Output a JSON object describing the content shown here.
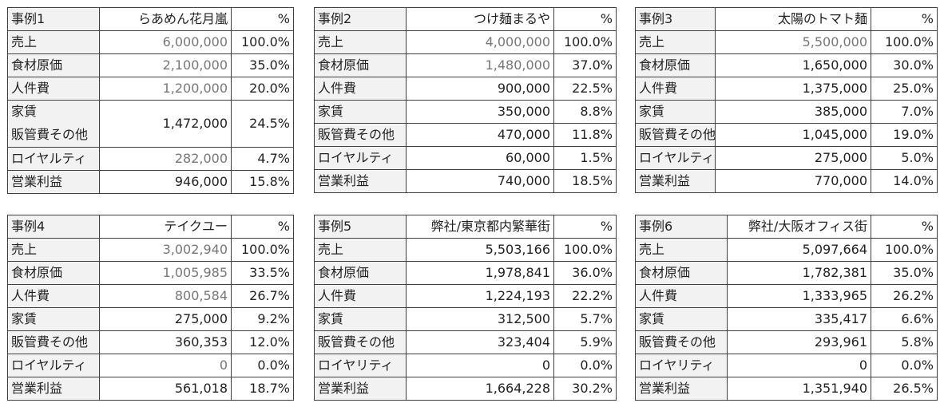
{
  "case1": {
    "id": "事例1",
    "name": "らあめん花月嵐",
    "pct_header": "%",
    "rows": [
      {
        "label": "売上",
        "value": "6,000,000",
        "pct": "100.0%"
      },
      {
        "label": "食材原価",
        "value": "2,100,000",
        "pct": "35.0%"
      },
      {
        "label": "人件費",
        "value": "1,200,000",
        "pct": "20.0%"
      },
      {
        "label": "家賃",
        "label2": "販管費その他",
        "value": "1,472,000",
        "pct": "24.5%"
      },
      {
        "label": "ロイヤルティ",
        "value": "282,000",
        "pct": "4.7%"
      },
      {
        "label": "営業利益",
        "value": "946,000",
        "pct": "15.8%"
      }
    ]
  },
  "case2": {
    "id": "事例2",
    "name": "つけ麺まるや",
    "pct_header": "%",
    "rows": [
      {
        "label": "売上",
        "value": "4,000,000",
        "pct": "100.0%"
      },
      {
        "label": "食材原価",
        "value": "1,480,000",
        "pct": "37.0%"
      },
      {
        "label": "人件費",
        "value": "900,000",
        "pct": "22.5%"
      },
      {
        "label": "家賃",
        "value": "350,000",
        "pct": "8.8%"
      },
      {
        "label": "販管費その他",
        "value": "470,000",
        "pct": "11.8%"
      },
      {
        "label": "ロイヤルティ",
        "value": "60,000",
        "pct": "1.5%"
      },
      {
        "label": "営業利益",
        "value": "740,000",
        "pct": "18.5%"
      }
    ]
  },
  "case3": {
    "id": "事例3",
    "name": "太陽のトマト麺",
    "pct_header": "%",
    "rows": [
      {
        "label": "売上",
        "value": "5,500,000",
        "pct": "100.0%"
      },
      {
        "label": "食材原価",
        "value": "1,650,000",
        "pct": "30.0%"
      },
      {
        "label": "人件費",
        "value": "1,375,000",
        "pct": "25.0%"
      },
      {
        "label": "家賃",
        "value": "385,000",
        "pct": "7.0%"
      },
      {
        "label": "販管費その他",
        "value": "1,045,000",
        "pct": "19.0%"
      },
      {
        "label": "ロイヤルティ",
        "value": "275,000",
        "pct": "5.0%"
      },
      {
        "label": "営業利益",
        "value": "770,000",
        "pct": "14.0%"
      }
    ]
  },
  "case4": {
    "id": "事例4",
    "name": "テイクユー",
    "pct_header": "%",
    "rows": [
      {
        "label": "売上",
        "value": "3,002,940",
        "pct": "100.0%"
      },
      {
        "label": "食材原価",
        "value": "1,005,985",
        "pct": "33.5%"
      },
      {
        "label": "人件費",
        "value": "800,584",
        "pct": "26.7%"
      },
      {
        "label": "家賃",
        "value": "275,000",
        "pct": "9.2%"
      },
      {
        "label": "販管費その他",
        "value": "360,353",
        "pct": "12.0%"
      },
      {
        "label": "ロイヤルティ",
        "value": "0",
        "pct": "0.0%"
      },
      {
        "label": "営業利益",
        "value": "561,018",
        "pct": "18.7%"
      }
    ]
  },
  "case5": {
    "id": "事例5",
    "name": "弊社/東京都内繁華街",
    "pct_header": "%",
    "rows": [
      {
        "label": "売上",
        "value": "5,503,166",
        "pct": "100.0%"
      },
      {
        "label": "食材原価",
        "value": "1,978,841",
        "pct": "36.0%"
      },
      {
        "label": "人件費",
        "value": "1,224,193",
        "pct": "22.2%"
      },
      {
        "label": "家賃",
        "value": "312,500",
        "pct": "5.7%"
      },
      {
        "label": "販管費その他",
        "value": "323,404",
        "pct": "5.9%"
      },
      {
        "label": "ロイヤリティ",
        "value": "0",
        "pct": "0.0%"
      },
      {
        "label": "営業利益",
        "value": "1,664,228",
        "pct": "30.2%"
      }
    ]
  },
  "case6": {
    "id": "事例6",
    "name": "弊社/大阪オフィス街",
    "pct_header": "%",
    "rows": [
      {
        "label": "売上",
        "value": "5,097,664",
        "pct": "100.0%"
      },
      {
        "label": "食材原価",
        "value": "1,782,381",
        "pct": "35.0%"
      },
      {
        "label": "人件費",
        "value": "1,333,965",
        "pct": "26.2%"
      },
      {
        "label": "家賃",
        "value": "335,417",
        "pct": "6.6%"
      },
      {
        "label": "販管費その他",
        "value": "293,961",
        "pct": "5.8%"
      },
      {
        "label": "ロイヤリティ",
        "value": "0",
        "pct": "0.0%"
      },
      {
        "label": "営業利益",
        "value": "1,351,940",
        "pct": "26.5%"
      }
    ]
  }
}
